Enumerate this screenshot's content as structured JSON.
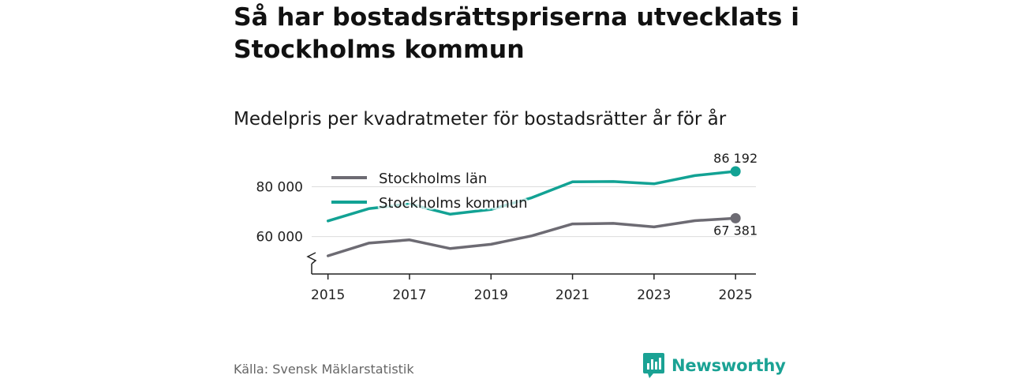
{
  "title": "Så har bostadsrättspriserna utvecklats i Stockholms kommun",
  "subtitle": "Medelpris per kvadratmeter för bostadsrätter år för år",
  "source": "Källa: Svensk Mäklarstatistik",
  "brand": {
    "name": "Newsworthy",
    "color": "#1aa294"
  },
  "colors": {
    "lan": "#6d6b73",
    "kommun": "#12a294",
    "grid": "#dcdcdc",
    "axis": "#222222"
  },
  "chart_data": {
    "type": "line",
    "title": "Så har bostadsrättspriserna utvecklats i Stockholms kommun",
    "subtitle": "Medelpris per kvadratmeter för bostadsrätter år för år",
    "xlabel": "",
    "ylabel": "",
    "x": [
      2015,
      2016,
      2017,
      2018,
      2019,
      2020,
      2021,
      2022,
      2023,
      2024,
      2025
    ],
    "xticks": [
      2015,
      2017,
      2019,
      2021,
      2023,
      2025
    ],
    "xtick_labels": [
      "2015",
      "2017",
      "2019",
      "2021",
      "2023",
      "2025"
    ],
    "yticks": [
      60000,
      80000
    ],
    "ytick_labels": [
      "60 000",
      "80 000"
    ],
    "ylim": [
      45000,
      90000
    ],
    "xlim": [
      2014.6,
      2025.5
    ],
    "y_axis_break": true,
    "grid": true,
    "legend_position": "top-left",
    "series": [
      {
        "name": "Stockholms län",
        "key": "lan",
        "values": [
          52300,
          57400,
          58700,
          55200,
          56900,
          60300,
          65100,
          65300,
          63900,
          66400,
          67381
        ],
        "end_label": "67 381"
      },
      {
        "name": "Stockholms kommun",
        "key": "kommun",
        "values": [
          66300,
          71200,
          73100,
          69000,
          70900,
          75600,
          82000,
          82100,
          81200,
          84500,
          86192
        ],
        "end_label": "86 192"
      }
    ]
  }
}
